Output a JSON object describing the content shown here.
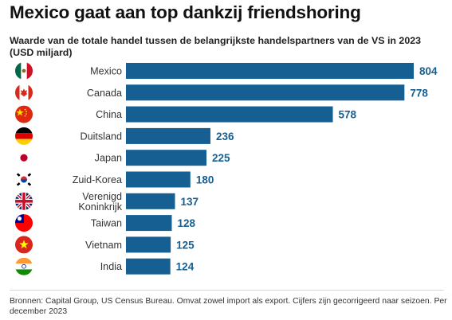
{
  "title": "Mexico gaat aan top dankzij friendshoring",
  "subtitle": "Waarde van de totale handel tussen de belangrijkste handelspartners van de VS in 2023 (USD miljard)",
  "footnote": "Bronnen: Capital Group, US Census Bureau. Omvat zowel import als export. Cijfers zijn gecorrigeerd naar seizoen. Per december 2023",
  "colors": {
    "bar": "#155f92",
    "value_text": "#155f92"
  },
  "chart_data": {
    "type": "bar",
    "orientation": "horizontal",
    "categories": [
      [
        "Mexico"
      ],
      [
        "Canada"
      ],
      [
        "China"
      ],
      [
        "Duitsland"
      ],
      [
        "Japan"
      ],
      [
        "Zuid-Korea"
      ],
      [
        "Verenigd",
        "Koninkrijk"
      ],
      [
        "Taiwan"
      ],
      [
        "Vietnam"
      ],
      [
        "India"
      ]
    ],
    "values": [
      804,
      778,
      578,
      236,
      225,
      180,
      137,
      128,
      125,
      124
    ],
    "flags": [
      "mexico-flag-icon",
      "canada-flag-icon",
      "china-flag-icon",
      "germany-flag-icon",
      "japan-flag-icon",
      "south-korea-flag-icon",
      "uk-flag-icon",
      "taiwan-flag-icon",
      "vietnam-flag-icon",
      "india-flag-icon"
    ],
    "xlim": [
      0,
      804
    ],
    "grid": false,
    "legend": "none",
    "data_labels": true
  }
}
